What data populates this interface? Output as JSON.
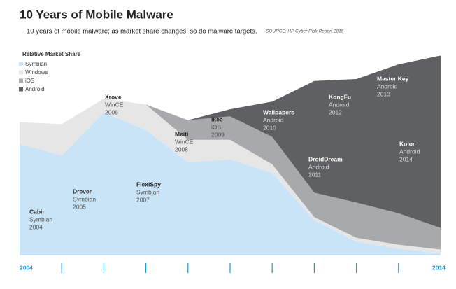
{
  "chart_data": {
    "type": "stacked-area",
    "title": "10 Years of Mobile Malware",
    "subtitle": "10 years of mobile malware; as market share changes, so do malware targets.",
    "source": "SOURCE: HP Cyber Risk Report 2015",
    "legend_title": "Relative Market Share",
    "categories": [
      "2004",
      null,
      null,
      null,
      null,
      null,
      null,
      null,
      null,
      null,
      "2014"
    ],
    "series": [
      {
        "name": "Symbian",
        "color": "#c9e4f7",
        "values": [
          57,
          51,
          73,
          64,
          47.5,
          49,
          42,
          18,
          7,
          3.5,
          1
        ]
      },
      {
        "name": "Windows",
        "color": "#e6e6e6",
        "values": [
          11,
          16,
          7,
          13,
          11.5,
          10,
          4.5,
          1.5,
          2,
          2,
          2
        ]
      },
      {
        "name": "iOS",
        "color": "#a8a9ab",
        "values": [
          0,
          0,
          0,
          0,
          10,
          12,
          14,
          12.5,
          18,
          16,
          11
        ]
      },
      {
        "name": "Android",
        "color": "#5e6062",
        "values": [
          0,
          0,
          0,
          0,
          0,
          3.6,
          18,
          57,
          63,
          76,
          88
        ]
      }
    ],
    "ylim": [
      0,
      100
    ],
    "annotations": [
      {
        "name": "Cabir",
        "platform": "Symbian",
        "year": "2004"
      },
      {
        "name": "Drever",
        "platform": "Symbian",
        "year": "2005"
      },
      {
        "name": "Xrove",
        "platform": "WinCE",
        "year": "2006"
      },
      {
        "name": "FlexiSpy",
        "platform": "Symbian",
        "year": "2007"
      },
      {
        "name": "Meiti",
        "platform": "WinCE",
        "year": "2008"
      },
      {
        "name": "Ikee",
        "platform": "iOS",
        "year": "2009"
      },
      {
        "name": "Wallpapers",
        "platform": "Android",
        "year": "2010"
      },
      {
        "name": "DroidDream",
        "platform": "Android",
        "year": "2011"
      },
      {
        "name": "KongFu",
        "platform": "Android",
        "year": "2012"
      },
      {
        "name": "Master Key",
        "platform": "Android",
        "year": "2013"
      },
      {
        "name": "Kolor",
        "platform": "Android",
        "year": "2014"
      }
    ]
  }
}
